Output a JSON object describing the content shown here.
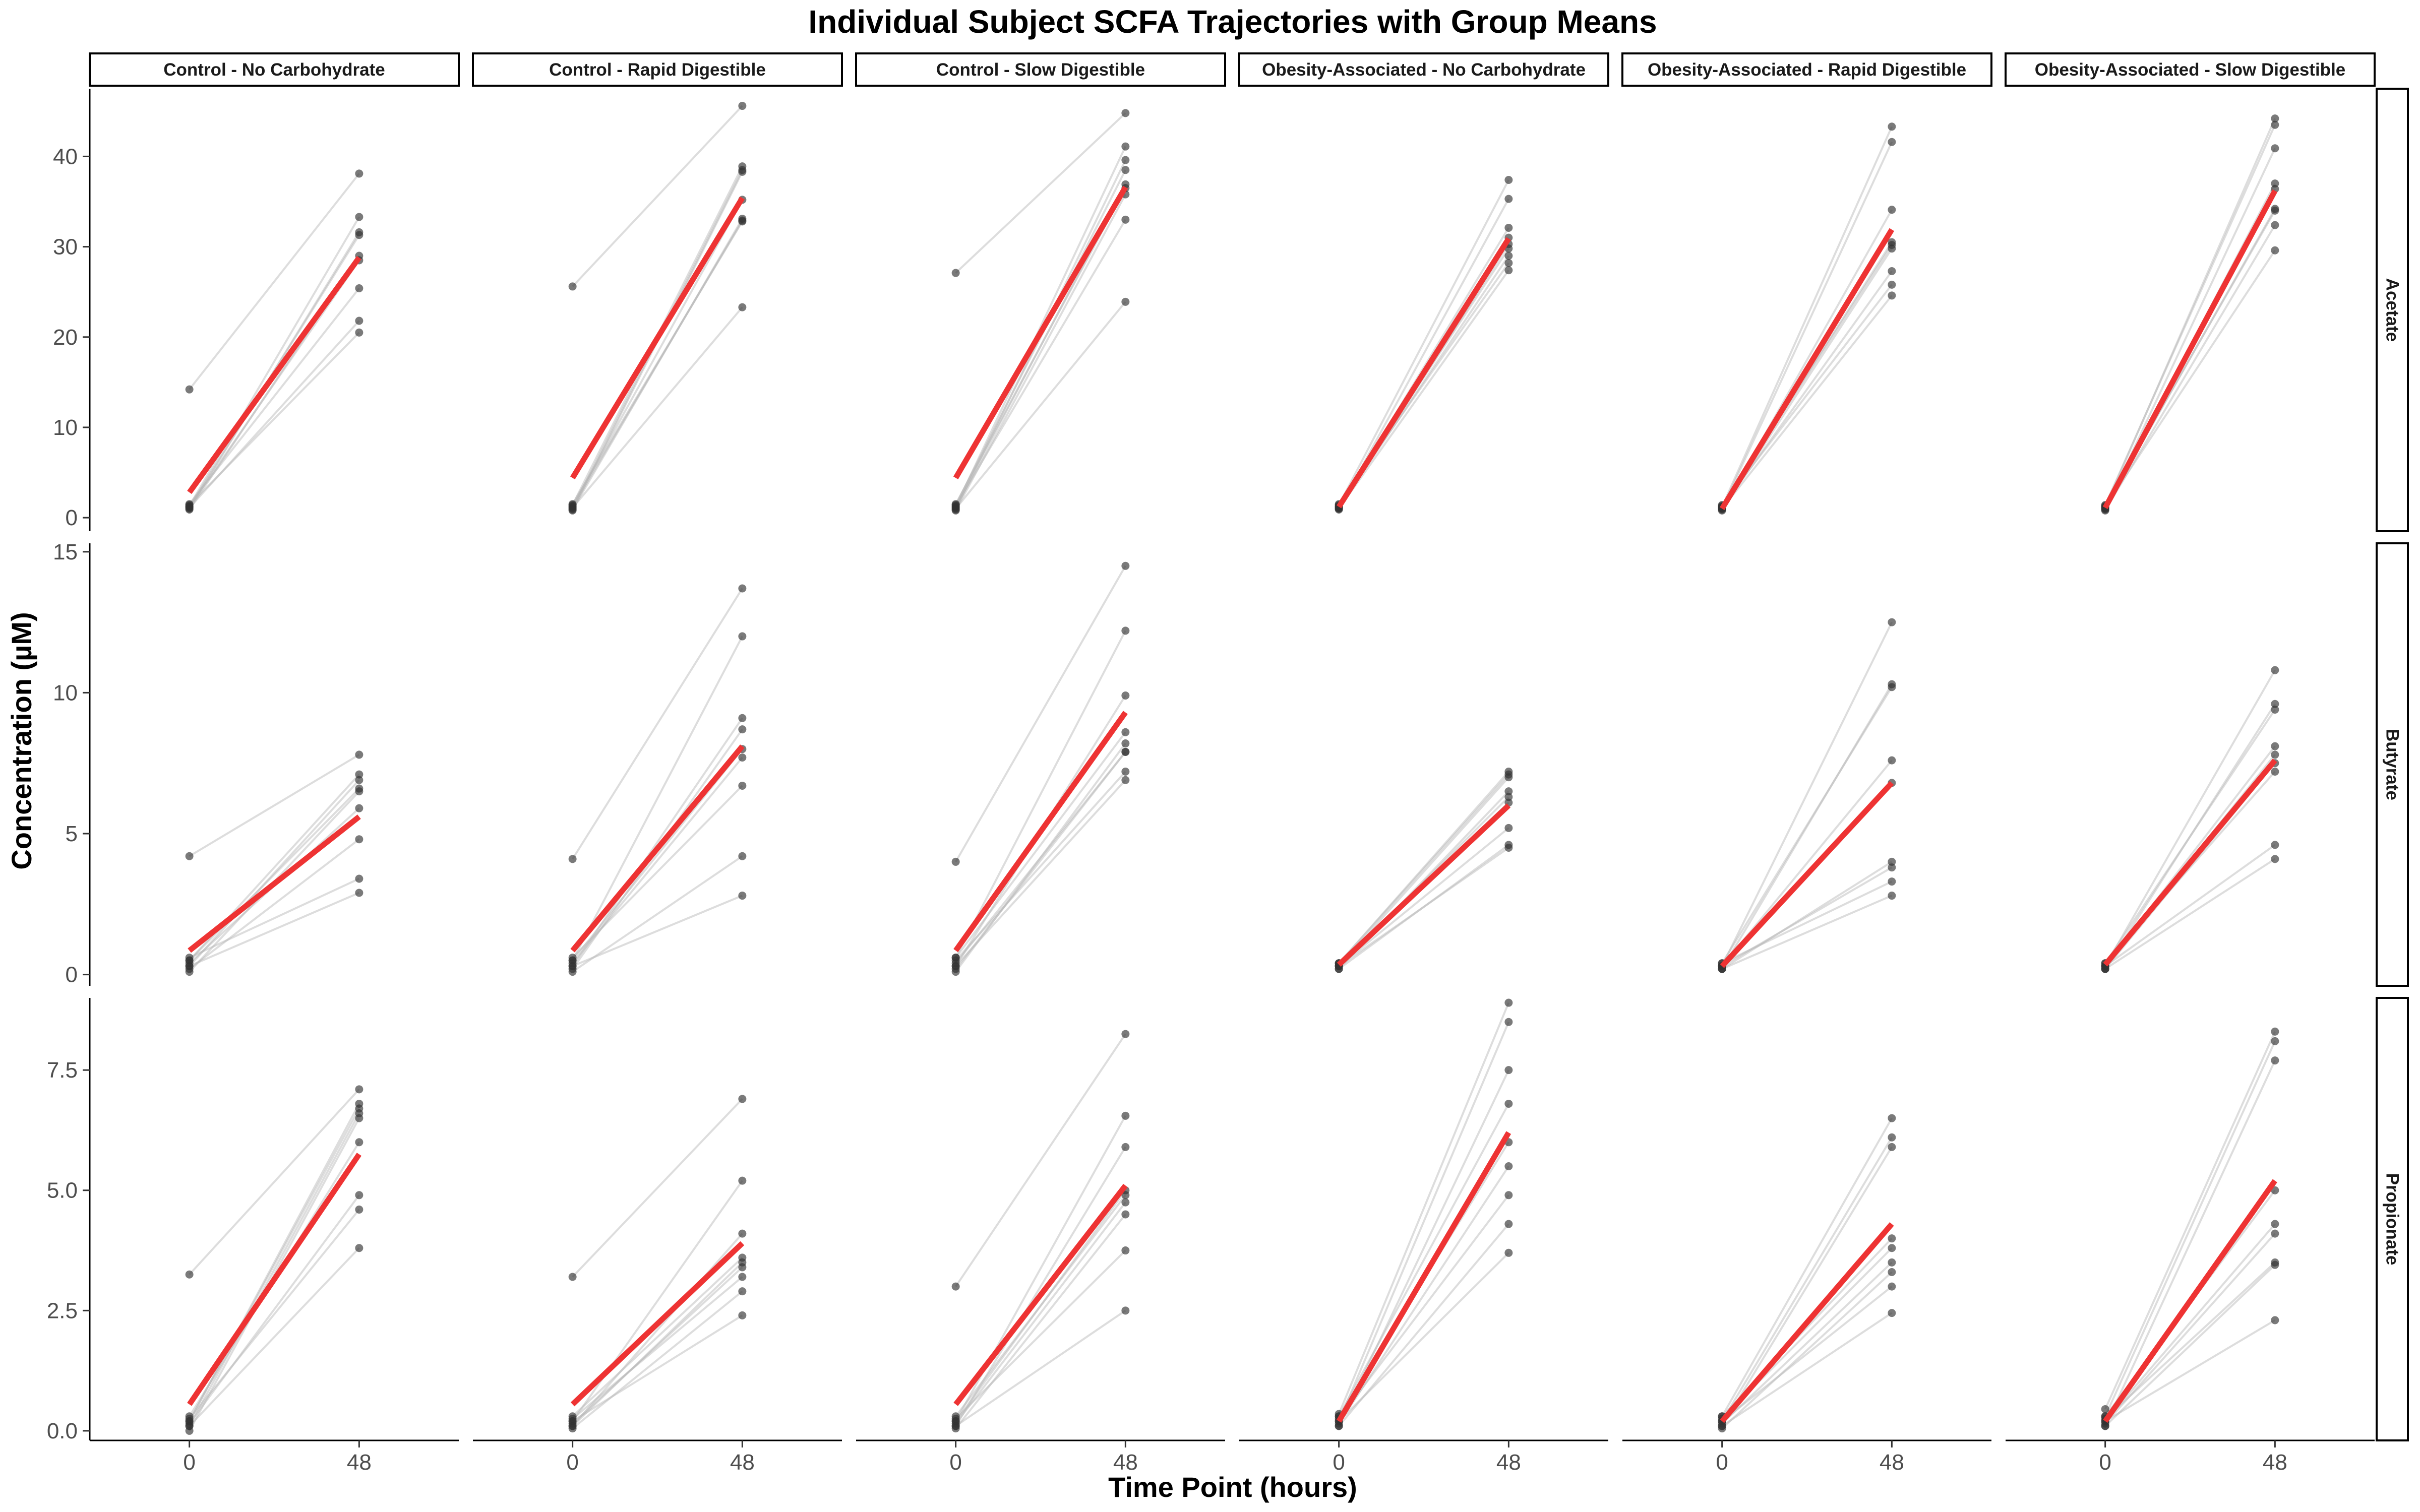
{
  "chart_data": {
    "type": "line",
    "title": "Individual Subject SCFA Trajectories with Group Means",
    "xlabel": "Time Point (hours)",
    "ylabel": "Concentration (µM)",
    "x_ticks": [
      "0",
      "48"
    ],
    "columns": [
      "Control - No Carbohydrate",
      "Control - Rapid Digestible",
      "Control - Slow Digestible",
      "Obesity-Associated - No Carbohydrate",
      "Obesity-Associated - Rapid Digestible",
      "Obesity-Associated - Slow Digestible"
    ],
    "colors": {
      "mean_line": "#ee3333",
      "subject_line": "#b3b3b3",
      "point": "#333333"
    },
    "rows": [
      {
        "name": "Acetate",
        "ylim": [
          -1.5,
          47.5
        ],
        "y_ticks": [
          "0",
          "10",
          "20",
          "30",
          "40"
        ],
        "y_tick_values": [
          0,
          10,
          20,
          30,
          40
        ],
        "panels": [
          {
            "t0": [
              14.2,
              1.3,
              1.0,
              1.2,
              0.9,
              1.5,
              1.1,
              1.4,
              1.2
            ],
            "t48": [
              38.1,
              33.3,
              31.6,
              31.3,
              29.0,
              25.4,
              21.8,
              20.5,
              28.5
            ],
            "mean": [
              2.8,
              28.8
            ]
          },
          {
            "t0": [
              25.6,
              1.4,
              1.0,
              0.9,
              1.2,
              1.5,
              1.1,
              0.8,
              1.3
            ],
            "t48": [
              45.6,
              38.9,
              38.5,
              33.1,
              32.9,
              32.8,
              23.3,
              38.3,
              35.2
            ],
            "mean": [
              4.4,
              35.4
            ]
          },
          {
            "t0": [
              27.1,
              1.2,
              0.9,
              1.4,
              1.1,
              0.8,
              1.3,
              1.0,
              1.5
            ],
            "t48": [
              44.8,
              41.1,
              39.6,
              38.5,
              36.9,
              35.8,
              33.0,
              23.9,
              36.5
            ],
            "mean": [
              4.4,
              36.6
            ]
          },
          {
            "t0": [
              1.4,
              1.0,
              1.2,
              0.9,
              1.3,
              1.1,
              1.5,
              1.0,
              1.2
            ],
            "t48": [
              37.4,
              35.3,
              32.1,
              30.3,
              29.8,
              29.0,
              28.2,
              27.4,
              31.0
            ],
            "mean": [
              1.2,
              30.9
            ]
          },
          {
            "t0": [
              1.2,
              1.0,
              0.8,
              1.3,
              0.9,
              1.1,
              1.4,
              1.0,
              1.2
            ],
            "t48": [
              43.3,
              41.6,
              34.1,
              30.2,
              29.8,
              27.3,
              25.8,
              24.6,
              30.5
            ],
            "mean": [
              1.0,
              31.9
            ]
          },
          {
            "t0": [
              1.2,
              1.4,
              0.9,
              1.0,
              1.1,
              1.3,
              0.8,
              1.2,
              1.0
            ],
            "t48": [
              44.2,
              43.5,
              40.9,
              36.4,
              34.2,
              34.0,
              32.4,
              29.6,
              37.0
            ],
            "mean": [
              1.1,
              36.2
            ]
          }
        ]
      },
      {
        "name": "Butyrate",
        "ylim": [
          -0.4,
          15.3
        ],
        "y_ticks": [
          "0",
          "5",
          "10",
          "15"
        ],
        "y_tick_values": [
          0,
          5,
          10,
          15
        ],
        "panels": [
          {
            "t0": [
              4.2,
              0.5,
              0.3,
              0.1,
              0.4,
              0.2,
              0.6,
              0.3,
              0.5
            ],
            "t48": [
              7.8,
              7.1,
              6.9,
              6.5,
              5.9,
              4.8,
              3.4,
              2.9,
              6.6
            ],
            "mean": [
              0.85,
              5.6
            ]
          },
          {
            "t0": [
              4.1,
              0.5,
              0.3,
              0.2,
              0.4,
              0.6,
              0.1,
              0.3,
              0.5
            ],
            "t48": [
              13.7,
              12.0,
              9.1,
              8.7,
              7.7,
              6.7,
              4.2,
              2.8,
              8.0
            ],
            "mean": [
              0.85,
              8.1
            ]
          },
          {
            "t0": [
              4.0,
              0.6,
              0.3,
              0.1,
              0.4,
              0.2,
              0.5,
              0.3,
              0.6
            ],
            "t48": [
              14.5,
              12.2,
              9.9,
              8.2,
              7.9,
              7.9,
              7.2,
              6.9,
              8.6
            ],
            "mean": [
              0.85,
              9.3
            ]
          },
          {
            "t0": [
              0.4,
              0.3,
              0.2,
              0.4,
              0.3,
              0.2,
              0.3,
              0.4,
              0.3
            ],
            "t48": [
              7.2,
              7.0,
              6.5,
              6.1,
              5.2,
              4.6,
              4.5,
              7.1,
              6.3
            ],
            "mean": [
              0.35,
              6.0
            ]
          },
          {
            "t0": [
              0.3,
              0.2,
              0.4,
              0.3,
              0.2,
              0.3,
              0.4,
              0.2,
              0.3
            ],
            "t48": [
              12.5,
              10.3,
              10.2,
              7.6,
              4.0,
              3.8,
              3.3,
              2.8,
              6.8
            ],
            "mean": [
              0.3,
              6.8
            ]
          },
          {
            "t0": [
              0.3,
              0.2,
              0.4,
              0.3,
              0.2,
              0.4,
              0.3,
              0.2,
              0.3
            ],
            "t48": [
              10.8,
              9.6,
              9.4,
              7.8,
              7.5,
              7.2,
              4.6,
              4.1,
              8.1
            ],
            "mean": [
              0.35,
              7.6
            ]
          }
        ]
      },
      {
        "name": "Propionate",
        "ylim": [
          -0.2,
          9.0
        ],
        "y_ticks": [
          "0.0",
          "2.5",
          "5.0",
          "7.5"
        ],
        "y_tick_values": [
          0.0,
          2.5,
          5.0,
          7.5
        ],
        "panels": [
          {
            "t0": [
              3.25,
              0.2,
              0.1,
              0.0,
              0.3,
              0.15,
              0.25,
              0.1,
              0.2
            ],
            "t48": [
              7.1,
              6.8,
              6.6,
              6.5,
              6.0,
              4.9,
              4.6,
              3.8,
              6.7
            ],
            "mean": [
              0.55,
              5.75
            ]
          },
          {
            "t0": [
              3.2,
              0.2,
              0.1,
              0.3,
              0.15,
              0.25,
              0.05,
              0.2,
              0.1
            ],
            "t48": [
              6.9,
              5.2,
              4.1,
              3.6,
              3.4,
              3.2,
              2.9,
              2.4,
              3.5
            ],
            "mean": [
              0.55,
              3.9
            ]
          },
          {
            "t0": [
              3.0,
              0.2,
              0.1,
              0.3,
              0.15,
              0.05,
              0.25,
              0.1,
              0.2
            ],
            "t48": [
              8.25,
              6.55,
              5.9,
              4.9,
              4.75,
              4.5,
              3.75,
              2.5,
              5.0
            ],
            "mean": [
              0.55,
              5.1
            ]
          },
          {
            "t0": [
              0.35,
              0.2,
              0.1,
              0.3,
              0.15,
              0.25,
              0.1,
              0.2,
              0.3
            ],
            "t48": [
              8.9,
              8.5,
              7.5,
              6.8,
              5.5,
              4.9,
              4.3,
              3.7,
              6.0
            ],
            "mean": [
              0.2,
              6.2
            ]
          },
          {
            "t0": [
              0.3,
              0.2,
              0.1,
              0.25,
              0.15,
              0.05,
              0.2,
              0.1,
              0.3
            ],
            "t48": [
              6.5,
              6.1,
              5.9,
              3.8,
              3.5,
              3.3,
              3.0,
              2.45,
              4.0
            ],
            "mean": [
              0.2,
              4.3
            ]
          },
          {
            "t0": [
              0.45,
              0.3,
              0.1,
              0.2,
              0.15,
              0.25,
              0.1,
              0.2,
              0.3
            ],
            "t48": [
              8.3,
              8.1,
              7.7,
              4.3,
              4.1,
              3.5,
              3.45,
              2.3,
              5.0
            ],
            "mean": [
              0.2,
              5.2
            ]
          }
        ]
      }
    ]
  }
}
